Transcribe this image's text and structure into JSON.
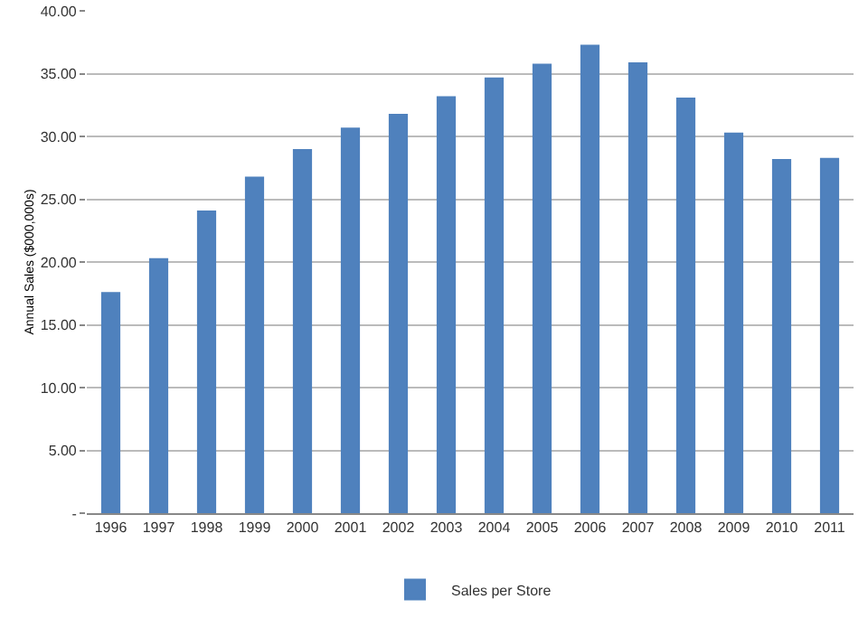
{
  "chart_data": {
    "type": "bar",
    "ylabel": "Annual Sales ($000,000s)",
    "categories": [
      "1996",
      "1997",
      "1998",
      "1999",
      "2000",
      "2001",
      "2002",
      "2003",
      "2004",
      "2005",
      "2006",
      "2007",
      "2008",
      "2009",
      "2010",
      "2011"
    ],
    "series": [
      {
        "name": "Sales per Store",
        "color": "#4f81bd",
        "values": [
          17.6,
          20.3,
          24.1,
          26.8,
          29.0,
          30.7,
          31.8,
          33.2,
          34.7,
          35.8,
          37.3,
          35.9,
          33.1,
          30.3,
          28.2,
          28.3
        ]
      }
    ],
    "ylim": [
      0,
      40
    ],
    "yticks": [
      {
        "value": 0,
        "label": "-"
      },
      {
        "value": 5,
        "label": "5.00"
      },
      {
        "value": 10,
        "label": "10.00"
      },
      {
        "value": 15,
        "label": "15.00"
      },
      {
        "value": 20,
        "label": "20.00"
      },
      {
        "value": 25,
        "label": "25.00"
      },
      {
        "value": 30,
        "label": "30.00"
      },
      {
        "value": 35,
        "label": "35.00"
      },
      {
        "value": 40,
        "label": "40.00"
      }
    ],
    "grid": "y",
    "legend": "bottom"
  }
}
